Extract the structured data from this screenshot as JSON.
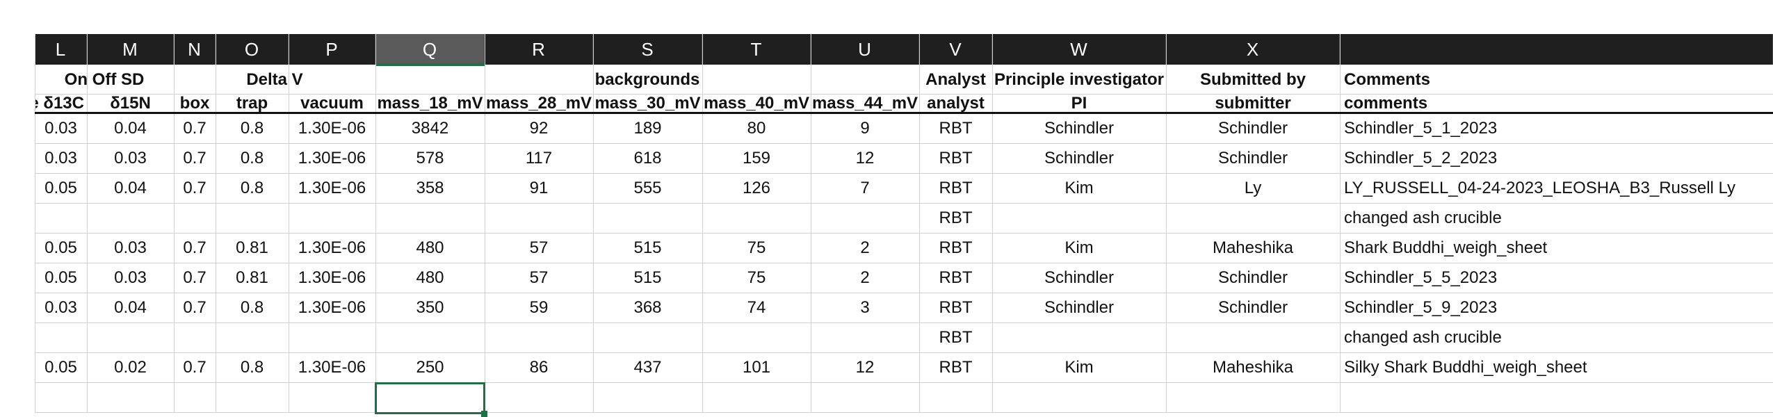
{
  "column_headers": [
    "L",
    "M",
    "N",
    "O",
    "P",
    "Q",
    "R",
    "S",
    "T",
    "U",
    "V",
    "W",
    "X",
    ""
  ],
  "selected_column": "Q",
  "header_row1": {
    "on_off_sd": "On Off SD",
    "delta_v": "Delta V",
    "backgrounds": "backgrounds",
    "analyst": "Analyst",
    "pi": "Principle investigator",
    "submitted_by": "Submitted by",
    "comments": "Comments"
  },
  "header_row2": [
    "e δ13C",
    "δ15N",
    "box",
    "trap",
    "vacuum",
    "mass_18_mV",
    "mass_28_mV",
    "mass_30_mV",
    "mass_40_mV",
    "mass_44_mV",
    "analyst",
    "PI",
    "submitter",
    "comments"
  ],
  "rows": [
    [
      "0.03",
      "0.04",
      "0.7",
      "0.8",
      "1.30E-06",
      "3842",
      "92",
      "189",
      "80",
      "9",
      "RBT",
      "Schindler",
      "Schindler",
      "Schindler_5_1_2023"
    ],
    [
      "0.03",
      "0.03",
      "0.7",
      "0.8",
      "1.30E-06",
      "578",
      "117",
      "618",
      "159",
      "12",
      "RBT",
      "Schindler",
      "Schindler",
      "Schindler_5_2_2023"
    ],
    [
      "0.05",
      "0.04",
      "0.7",
      "0.8",
      "1.30E-06",
      "358",
      "91",
      "555",
      "126",
      "7",
      "RBT",
      "Kim",
      "Ly",
      "LY_RUSSELL_04-24-2023_LEOSHA_B3_Russell Ly"
    ],
    [
      "",
      "",
      "",
      "",
      "",
      "",
      "",
      "",
      "",
      "",
      "RBT",
      "",
      "",
      "changed ash crucible"
    ],
    [
      "0.05",
      "0.03",
      "0.7",
      "0.81",
      "1.30E-06",
      "480",
      "57",
      "515",
      "75",
      "2",
      "RBT",
      "Kim",
      "Maheshika",
      "Shark Buddhi_weigh_sheet"
    ],
    [
      "0.05",
      "0.03",
      "0.7",
      "0.81",
      "1.30E-06",
      "480",
      "57",
      "515",
      "75",
      "2",
      "RBT",
      "Schindler",
      "Schindler",
      "Schindler_5_5_2023"
    ],
    [
      "0.03",
      "0.04",
      "0.7",
      "0.8",
      "1.30E-06",
      "350",
      "59",
      "368",
      "74",
      "3",
      "RBT",
      "Schindler",
      "Schindler",
      "Schindler_5_9_2023"
    ],
    [
      "",
      "",
      "",
      "",
      "",
      "",
      "",
      "",
      "",
      "",
      "RBT",
      "",
      "",
      "changed ash crucible"
    ],
    [
      "0.05",
      "0.02",
      "0.7",
      "0.8",
      "1.30E-06",
      "250",
      "86",
      "437",
      "101",
      "12",
      "RBT",
      "Kim",
      "Maheshika",
      "Silky Shark Buddhi_weigh_sheet"
    ],
    [
      "",
      "",
      "",
      "",
      "",
      "",
      "",
      "",
      "",
      "",
      "",
      "",
      "",
      ""
    ]
  ],
  "colors": {
    "header_bg": "#1f1f1f",
    "selected_header_bg": "#5a5a5a",
    "accent_green": "#1e7145",
    "gridline": "#d0d0d0"
  }
}
